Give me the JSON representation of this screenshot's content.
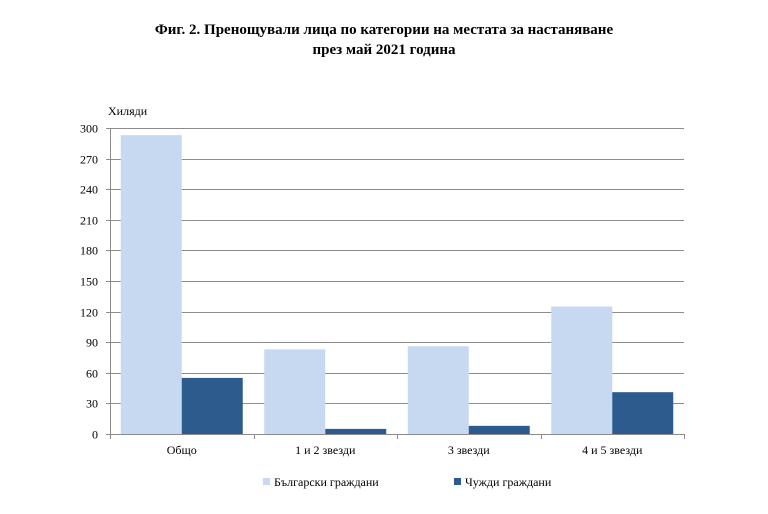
{
  "title_line1": "Фиг. 2. Пренощували лица по категории на местата за настаняване",
  "title_line2": "през май 2021 година",
  "chart_data": {
    "type": "bar",
    "ylabel": "Хиляди",
    "xlabel": "",
    "ylim": [
      0,
      300
    ],
    "yticks": [
      0,
      30,
      60,
      90,
      120,
      150,
      180,
      210,
      240,
      270,
      300
    ],
    "categories": [
      "Общо",
      "1 и 2 звезди",
      "3 звезди",
      "4 и 5 звезди"
    ],
    "series": [
      {
        "name": "Български граждани",
        "color": "#c6d9f1",
        "values": [
          293,
          83,
          86,
          125
        ]
      },
      {
        "name": "Чужди граждани",
        "color": "#2e5b8e",
        "values": [
          55,
          5,
          8,
          41
        ]
      }
    ],
    "grid": true,
    "legend_position": "bottom"
  }
}
